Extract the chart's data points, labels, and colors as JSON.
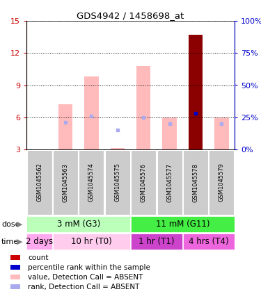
{
  "title": "GDS4942 / 1458698_at",
  "samples": [
    "GSM1045562",
    "GSM1045563",
    "GSM1045574",
    "GSM1045575",
    "GSM1045576",
    "GSM1045577",
    "GSM1045578",
    "GSM1045579"
  ],
  "ylim_left": [
    3,
    15
  ],
  "ylim_right": [
    0,
    100
  ],
  "yticks_left": [
    3,
    6,
    9,
    12,
    15
  ],
  "yticks_right": [
    0,
    25,
    50,
    75,
    100
  ],
  "value_bars": [
    null,
    7.2,
    9.8,
    3.1,
    10.8,
    6.0,
    13.7,
    6.0
  ],
  "value_bar_color_absent": "#ffbbbb",
  "value_bar_color_present": "#8b0000",
  "rank_dots": [
    null,
    5.5,
    6.1,
    4.8,
    6.0,
    5.4,
    6.4,
    5.4
  ],
  "rank_dot_color_absent": "#aaaaee",
  "rank_dot_color_present": "#0000cc",
  "bar_is_present": [
    false,
    false,
    false,
    false,
    false,
    false,
    true,
    false
  ],
  "rank_is_present": [
    false,
    false,
    false,
    false,
    false,
    false,
    true,
    false
  ],
  "dose_groups": [
    {
      "label": "3 mM (G3)",
      "start": 0,
      "end": 4,
      "color": "#bbffbb"
    },
    {
      "label": "11 mM (G11)",
      "start": 4,
      "end": 8,
      "color": "#44ee44"
    }
  ],
  "time_groups": [
    {
      "label": "2 days",
      "start": 0,
      "end": 1,
      "color": "#ffaaee"
    },
    {
      "label": "10 hr (T0)",
      "start": 1,
      "end": 4,
      "color": "#ffccee"
    },
    {
      "label": "1 hr (T1)",
      "start": 4,
      "end": 6,
      "color": "#cc44cc"
    },
    {
      "label": "4 hrs (T4)",
      "start": 6,
      "end": 8,
      "color": "#ee66dd"
    }
  ],
  "legend_items": [
    {
      "color": "#cc0000",
      "label": "count"
    },
    {
      "color": "#0000cc",
      "label": "percentile rank within the sample"
    },
    {
      "color": "#ffbbbb",
      "label": "value, Detection Call = ABSENT"
    },
    {
      "color": "#aaaaee",
      "label": "rank, Detection Call = ABSENT"
    }
  ],
  "bar_bottom": 3,
  "left_axis_color": "#cc0000",
  "right_axis_color": "#0000cc",
  "sample_box_color": "#cccccc",
  "fig_w": 3.75,
  "fig_h": 4.23,
  "dpi": 100
}
